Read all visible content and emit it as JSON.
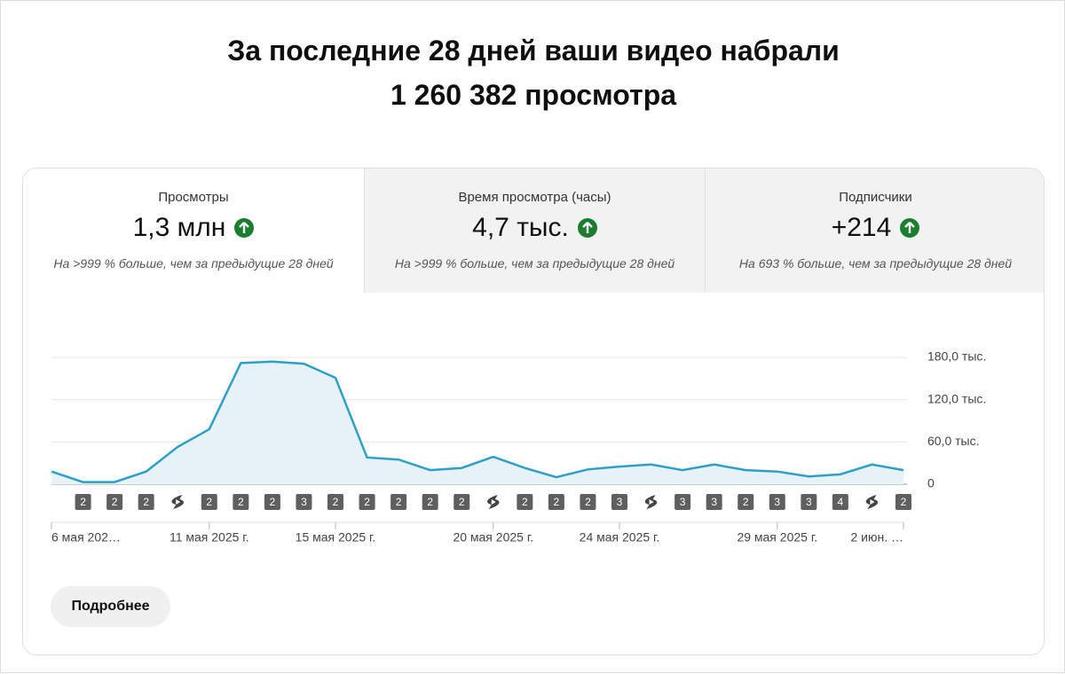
{
  "header": {
    "title_line1": "За последние 28 дней ваши видео набрали",
    "title_line2": "1 260 382 просмотра"
  },
  "cards": [
    {
      "label": "Просмотры",
      "value": "1,3 млн",
      "note": "На >999 % больше, чем за предыдущие 28 дней"
    },
    {
      "label": "Время просмотра (часы)",
      "value": "4,7 тыс.",
      "note": "На >999 % больше, чем за предыдущие 28 дней"
    },
    {
      "label": "Подписчики",
      "value": "+214",
      "note": "На 693 % больше, чем за предыдущие 28 дней"
    }
  ],
  "chart_data": {
    "type": "line",
    "color": "#2e9fc9",
    "categories": [
      "6 мая 202…",
      null,
      null,
      null,
      null,
      "11 мая 2025 г.",
      null,
      null,
      null,
      "15 мая 2025 г.",
      null,
      null,
      null,
      null,
      "20 мая 2025 г.",
      null,
      null,
      null,
      "24 мая 2025 г.",
      null,
      null,
      null,
      null,
      "29 мая 2025 г.",
      null,
      null,
      null,
      "2 июн. …"
    ],
    "values": [
      18000,
      3000,
      3000,
      18000,
      53000,
      78000,
      172000,
      174000,
      171000,
      151000,
      38000,
      35000,
      20000,
      23000,
      39000,
      23000,
      10000,
      21000,
      25000,
      28000,
      20000,
      28000,
      20000,
      18000,
      11000,
      14000,
      28000,
      20000
    ],
    "ylim": [
      0,
      180000
    ],
    "yticks": [
      {
        "value": 0,
        "label": "0"
      },
      {
        "value": 60000,
        "label": "60,0 тыс."
      },
      {
        "value": 120000,
        "label": "120,0 тыс."
      },
      {
        "value": 180000,
        "label": "180,0 тыс."
      }
    ],
    "grid": true,
    "markers": [
      null,
      "2",
      "2",
      "2",
      {
        "shorts": true
      },
      "2",
      "2",
      "2",
      "3",
      "2",
      "2",
      "2",
      "2",
      "2",
      {
        "shorts": true
      },
      "2",
      "2",
      "2",
      "3",
      {
        "shorts": true
      },
      "3",
      "3",
      "2",
      "3",
      "3",
      "4",
      {
        "shorts": true
      },
      "2"
    ]
  },
  "button": "Подробнее"
}
